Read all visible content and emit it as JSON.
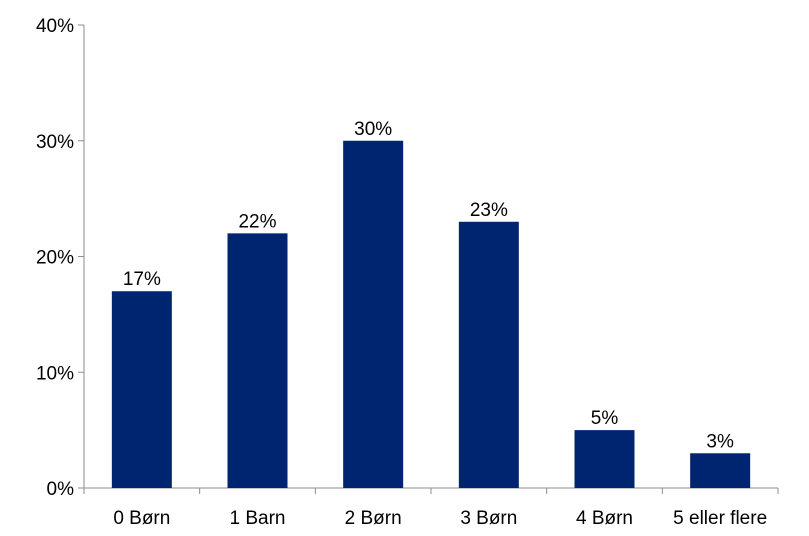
{
  "chart_data": {
    "type": "bar",
    "categories": [
      "0 Børn",
      "1 Barn",
      "2 Børn",
      "3 Børn",
      "4 Børn",
      "5 eller flere"
    ],
    "values": [
      17,
      22,
      30,
      23,
      5,
      3
    ],
    "value_labels": [
      "17%",
      "22%",
      "30%",
      "23%",
      "5%",
      "3%"
    ],
    "yticks": [
      0,
      10,
      20,
      30,
      40
    ],
    "ytick_labels": [
      "0%",
      "10%",
      "20%",
      "30%",
      "40%"
    ],
    "ylim": [
      0,
      40
    ],
    "grid": false,
    "legend": "none",
    "bar_color": "#002570",
    "axis_color": "#8c8c8c"
  }
}
